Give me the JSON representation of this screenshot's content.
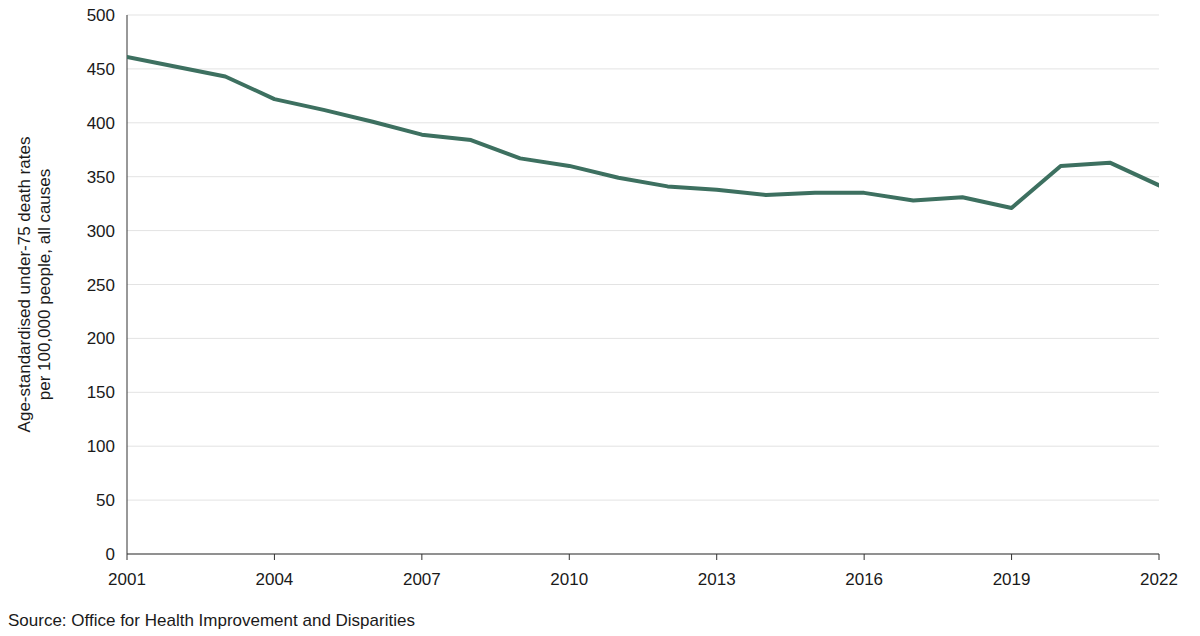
{
  "chart_data": {
    "type": "line",
    "y_label": [
      "Age-standardised under-75 death rates",
      "per 100,000 people, all causes"
    ],
    "source": "Source: Office for Health Improvement and Disparities",
    "x": [
      2001,
      2002,
      2003,
      2004,
      2005,
      2006,
      2007,
      2008,
      2009,
      2010,
      2011,
      2012,
      2013,
      2014,
      2015,
      2016,
      2017,
      2018,
      2019,
      2020,
      2021,
      2022
    ],
    "series": [
      {
        "color": "#3d7060",
        "values": [
          461,
          452,
          443,
          422,
          412,
          401,
          389,
          384,
          367,
          360,
          349,
          341,
          338,
          333,
          335,
          335,
          328,
          331,
          321,
          360,
          363,
          342
        ]
      }
    ],
    "xlim": [
      2001,
      2022
    ],
    "xticks": [
      2001,
      2004,
      2007,
      2010,
      2013,
      2016,
      2019,
      2022
    ],
    "ylim": [
      0,
      500
    ],
    "yticks": [
      0,
      50,
      100,
      150,
      200,
      250,
      300,
      350,
      400,
      450,
      500
    ],
    "grid": true
  }
}
